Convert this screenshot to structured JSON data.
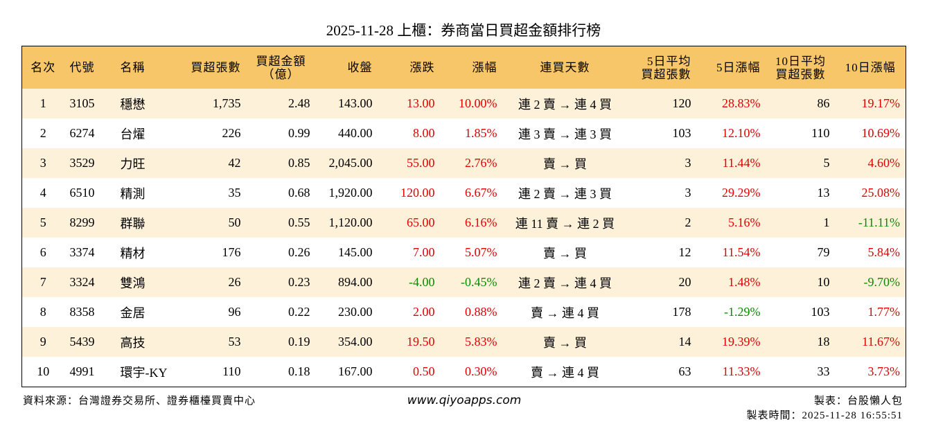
{
  "header": {
    "title": "2025-11-28 上櫃：券商當日買超金額排行榜"
  },
  "table": {
    "columns": [
      "名次",
      "代號",
      "名稱",
      "買超張數",
      "買超金額\n（億）",
      "收盤",
      "漲跌",
      "漲幅",
      "連買天數",
      "5日平均\n買超張數",
      "5日漲幅",
      "10日平均\n買超張數",
      "10日漲幅"
    ],
    "rows": [
      [
        "1",
        "3105",
        "穩懋",
        "1,735",
        "2.48",
        "143.00",
        "13.00",
        "10.00%",
        "連 2 賣 → 連 4 買",
        "120",
        "28.83%",
        "86",
        "19.17%"
      ],
      [
        "2",
        "6274",
        "台燿",
        "226",
        "0.99",
        "440.00",
        "8.00",
        "1.85%",
        "連 3 賣 → 連 3 買",
        "103",
        "12.10%",
        "110",
        "10.69%"
      ],
      [
        "3",
        "3529",
        "力旺",
        "42",
        "0.85",
        "2,045.00",
        "55.00",
        "2.76%",
        "賣 → 買",
        "3",
        "11.44%",
        "5",
        "4.60%"
      ],
      [
        "4",
        "6510",
        "精測",
        "35",
        "0.68",
        "1,920.00",
        "120.00",
        "6.67%",
        "連 2 賣 → 連 3 買",
        "3",
        "29.29%",
        "13",
        "25.08%"
      ],
      [
        "5",
        "8299",
        "群聯",
        "50",
        "0.55",
        "1,120.00",
        "65.00",
        "6.16%",
        "連 11 賣 → 連 2 買",
        "2",
        "5.16%",
        "1",
        "-11.11%"
      ],
      [
        "6",
        "3374",
        "精材",
        "176",
        "0.26",
        "145.00",
        "7.00",
        "5.07%",
        "賣 → 買",
        "12",
        "11.54%",
        "79",
        "5.84%"
      ],
      [
        "7",
        "3324",
        "雙鴻",
        "26",
        "0.23",
        "894.00",
        "-4.00",
        "-0.45%",
        "連 2 賣 → 連 4 買",
        "20",
        "1.48%",
        "10",
        "-9.70%"
      ],
      [
        "8",
        "8358",
        "金居",
        "96",
        "0.22",
        "230.00",
        "2.00",
        "0.88%",
        "賣 → 連 4 買",
        "178",
        "-1.29%",
        "103",
        "1.77%"
      ],
      [
        "9",
        "5439",
        "高技",
        "53",
        "0.19",
        "354.00",
        "19.50",
        "5.83%",
        "賣 → 買",
        "14",
        "19.39%",
        "18",
        "11.67%"
      ],
      [
        "10",
        "4991",
        "環宇-KY",
        "110",
        "0.18",
        "167.00",
        "0.50",
        "0.30%",
        "賣 → 連 4 買",
        "63",
        "11.33%",
        "33",
        "3.73%"
      ]
    ]
  },
  "footer": {
    "source": "資料來源：台灣證券交易所、證券櫃檯買賣中心",
    "website": "www.qiyoapps.com",
    "maker": "製表：台股懶人包",
    "time": "製表時間：2025-11-28 16:55:51"
  }
}
